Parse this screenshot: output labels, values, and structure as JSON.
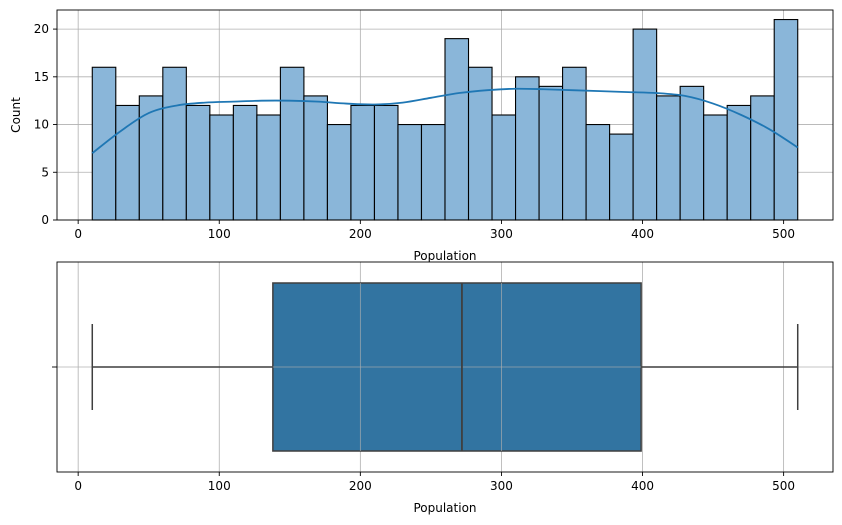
{
  "chart_data": [
    {
      "type": "histogram",
      "xlabel": "Population",
      "ylabel": "Count",
      "xlim": [
        -15,
        535
      ],
      "ylim": [
        0,
        22
      ],
      "xticks": [
        "0",
        "100",
        "200",
        "300",
        "400",
        "500"
      ],
      "xtick_values": [
        0,
        100,
        200,
        300,
        400,
        500
      ],
      "yticks": [
        "0",
        "5",
        "10",
        "15",
        "20"
      ],
      "ytick_values": [
        0,
        5,
        10,
        15,
        20
      ],
      "grid": true,
      "bar_color": "#8ab6d9",
      "bar_edge_color": "#000000",
      "kde_color": "#1f77b4",
      "bins": {
        "start": 10,
        "width": 16.6667,
        "counts": [
          16,
          12,
          13,
          16,
          12,
          11,
          12,
          11,
          16,
          13,
          10,
          12,
          12,
          10,
          10,
          19,
          16,
          11,
          15,
          14,
          16,
          10,
          9,
          20,
          13,
          14,
          11,
          12,
          13,
          21
        ]
      },
      "kde": {
        "x": [
          10,
          30,
          50,
          70,
          90,
          110,
          130,
          150,
          170,
          190,
          210,
          230,
          250,
          270,
          290,
          310,
          330,
          350,
          370,
          390,
          410,
          430,
          450,
          470,
          490,
          510
        ],
        "y": [
          7.0,
          9.3,
          11.2,
          12.0,
          12.3,
          12.4,
          12.5,
          12.5,
          12.4,
          12.2,
          12.1,
          12.3,
          12.8,
          13.3,
          13.6,
          13.75,
          13.7,
          13.6,
          13.5,
          13.4,
          13.3,
          13.0,
          12.2,
          11.0,
          9.5,
          7.6
        ]
      }
    },
    {
      "type": "boxplot",
      "xlabel": "Population",
      "xlim": [
        -15,
        535
      ],
      "xticks": [
        "0",
        "100",
        "200",
        "300",
        "400",
        "500"
      ],
      "xtick_values": [
        0,
        100,
        200,
        300,
        400,
        500
      ],
      "grid": true,
      "box_color": "#3274a1",
      "line_color": "#3f3f3f",
      "whisker_low": 10,
      "q1": 138,
      "median": 272,
      "q3": 399,
      "whisker_high": 510
    }
  ]
}
